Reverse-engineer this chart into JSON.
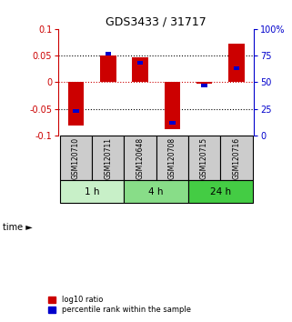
{
  "title": "GDS3433 / 31717",
  "samples": [
    "GSM120710",
    "GSM120711",
    "GSM120648",
    "GSM120708",
    "GSM120715",
    "GSM120716"
  ],
  "log10_ratio": [
    -0.082,
    0.051,
    0.047,
    -0.088,
    -0.003,
    0.073
  ],
  "percentile_rank": [
    0.23,
    0.77,
    0.68,
    0.12,
    0.47,
    0.63
  ],
  "groups": [
    {
      "label": "1 h",
      "samples": [
        0,
        1
      ],
      "color": "#c8f0c8"
    },
    {
      "label": "4 h",
      "samples": [
        2,
        3
      ],
      "color": "#88dd88"
    },
    {
      "label": "24 h",
      "samples": [
        4,
        5
      ],
      "color": "#44cc44"
    }
  ],
  "ylim": [
    -0.1,
    0.1
  ],
  "yticks": [
    -0.1,
    -0.05,
    0,
    0.05,
    0.1
  ],
  "ytick_labels_left": [
    "-0.1",
    "-0.05",
    "0",
    "0.05",
    "0.1"
  ],
  "ytick_labels_right": [
    "0",
    "25",
    "50",
    "75",
    "100%"
  ],
  "bar_color_red": "#cc0000",
  "bar_color_blue": "#0000cc",
  "left_axis_color": "#cc0000",
  "right_axis_color": "#0000cc",
  "bar_width": 0.5,
  "blue_bar_width": 0.18,
  "blue_bar_height": 0.007,
  "zero_line_color": "#cc0000",
  "sample_box_color": "#cccccc",
  "legend_red_label": "log10 ratio",
  "legend_blue_label": "percentile rank within the sample"
}
